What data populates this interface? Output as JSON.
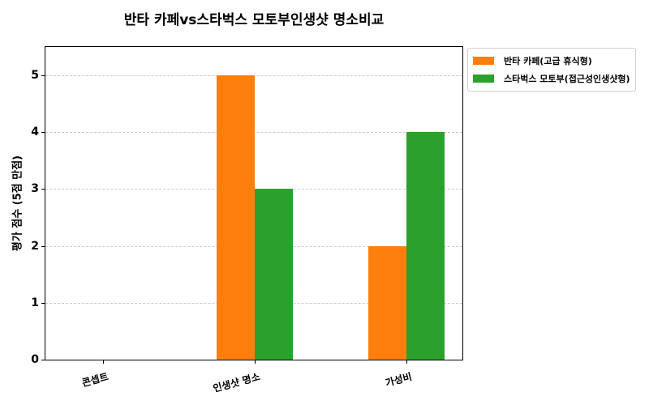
{
  "chart_data": {
    "type": "bar",
    "title": "반타 카페vs스타벅스 모토부인생샷 명소비교",
    "xlabel": "",
    "ylabel": "평가 점수 (5점 만점)",
    "categories": [
      "콘셉트",
      "인생샷 명소",
      "가성비"
    ],
    "series": [
      {
        "name": "반타 카페(고급 휴식형)",
        "color": "#ff7f0e",
        "values": [
          0,
          5,
          2
        ]
      },
      {
        "name": "스타벅스 모토부(접근성인생샷형)",
        "color": "#2ca02c",
        "values": [
          0,
          3,
          4
        ]
      }
    ],
    "ylim": [
      0,
      5.5
    ],
    "yticks": [
      "0",
      "1",
      "2",
      "3",
      "4",
      "5"
    ],
    "grid": "y-dashed",
    "legend_position": "outside-upper-right"
  }
}
